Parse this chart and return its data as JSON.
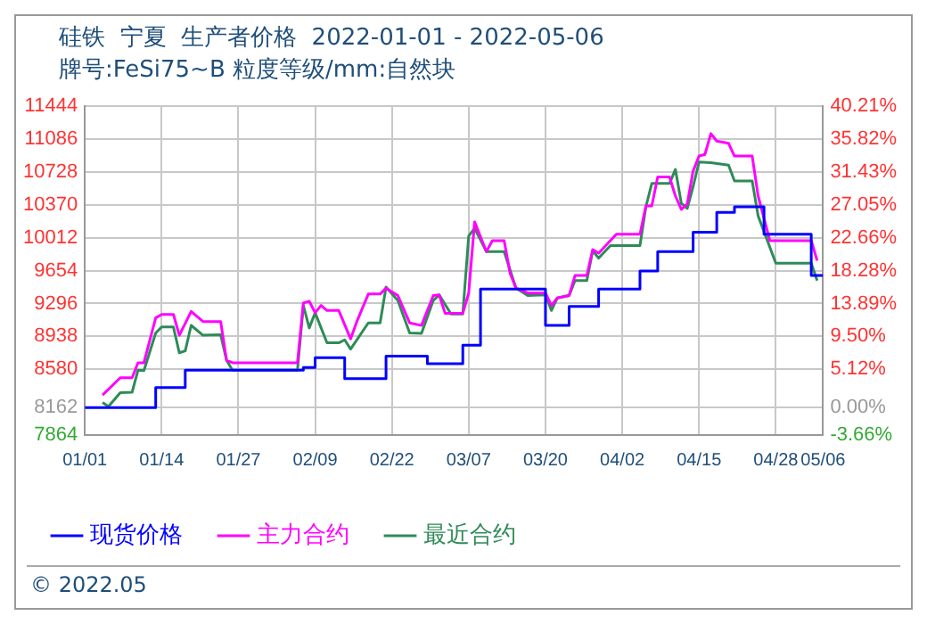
{
  "chart_data": {
    "type": "line",
    "title": "硅铁  宁夏  生产者价格  2022-01-01 - 2022-05-06",
    "subtitle": "牌号:FeSi75~B 粒度等级/mm:自然块",
    "annotations": [
      "© 2022.05"
    ],
    "xlim": [
      "2022-01-01",
      "2022-05-06"
    ],
    "xticks": [
      {
        "value": "2022-01-01",
        "label": "01/01"
      },
      {
        "value": "2022-01-14",
        "label": "01/14"
      },
      {
        "value": "2022-01-27",
        "label": "01/27"
      },
      {
        "value": "2022-02-09",
        "label": "02/09"
      },
      {
        "value": "2022-02-22",
        "label": "02/22"
      },
      {
        "value": "2022-03-07",
        "label": "03/07"
      },
      {
        "value": "2022-03-20",
        "label": "03/20"
      },
      {
        "value": "2022-04-02",
        "label": "04/02"
      },
      {
        "value": "2022-04-15",
        "label": "04/15"
      },
      {
        "value": "2022-04-28",
        "label": "04/28"
      },
      {
        "value": "2022-05-06",
        "label": "05/06"
      }
    ],
    "ylim": [
      7864,
      11444
    ],
    "yticks": [
      7864,
      8162,
      8580,
      8938,
      9296,
      9654,
      10012,
      10370,
      10728,
      11086,
      11444
    ],
    "y2lim": [
      -3.66,
      40.21
    ],
    "y2ticks": [
      {
        "value": -3.66,
        "label": "-3.66%"
      },
      {
        "value": 0,
        "label": "0.00%"
      },
      {
        "value": 5.12,
        "label": "5.12%"
      },
      {
        "value": 9.5,
        "label": "9.50%"
      },
      {
        "value": 13.89,
        "label": "13.89%"
      },
      {
        "value": 18.28,
        "label": "18.28%"
      },
      {
        "value": 22.66,
        "label": "22.66%"
      },
      {
        "value": 27.05,
        "label": "27.05%"
      },
      {
        "value": 31.43,
        "label": "31.43%"
      },
      {
        "value": 35.82,
        "label": "35.82%"
      },
      {
        "value": 40.21,
        "label": "40.21%"
      }
    ],
    "grid": true,
    "legend": "bottom",
    "marker": "none",
    "line_style": "solid",
    "series": [
      {
        "name": "现货价格",
        "type": "step",
        "color": "#0000ff",
        "x": [
          "2022-01-01",
          "2022-01-13",
          "2022-01-18",
          "2022-02-07",
          "2022-02-09",
          "2022-02-14",
          "2022-02-21",
          "2022-02-28",
          "2022-03-06",
          "2022-03-09",
          "2022-03-20",
          "2022-03-24",
          "2022-03-29",
          "2022-04-05",
          "2022-04-08",
          "2022-04-14",
          "2022-04-18",
          "2022-04-21",
          "2022-04-26",
          "2022-05-04",
          "2022-05-06"
        ],
        "values": [
          8162,
          8380,
          8570,
          8600,
          8706,
          8478,
          8722,
          8640,
          8841,
          9454,
          9057,
          9264,
          9454,
          9650,
          9861,
          10072,
          10289,
          10349,
          10050,
          9601,
          9601
        ]
      },
      {
        "name": "主力合约",
        "type": "line",
        "color": "#ff00ff",
        "x": [
          "2022-01-04",
          "2022-01-07",
          "2022-01-09",
          "2022-01-10",
          "2022-01-11",
          "2022-01-13",
          "2022-01-14",
          "2022-01-16",
          "2022-01-17",
          "2022-01-19",
          "2022-01-21",
          "2022-01-24",
          "2022-01-25",
          "2022-01-26",
          "2022-02-06",
          "2022-02-07",
          "2022-02-08",
          "2022-02-09",
          "2022-02-10",
          "2022-02-11",
          "2022-02-13",
          "2022-02-15",
          "2022-02-16",
          "2022-02-18",
          "2022-02-20",
          "2022-02-21",
          "2022-02-23",
          "2022-02-25",
          "2022-02-27",
          "2022-03-01",
          "2022-03-02",
          "2022-03-03",
          "2022-03-06",
          "2022-03-07",
          "2022-03-08",
          "2022-03-10",
          "2022-03-11",
          "2022-03-13",
          "2022-03-14",
          "2022-03-15",
          "2022-03-17",
          "2022-03-20",
          "2022-03-21",
          "2022-03-22",
          "2022-03-24",
          "2022-03-25",
          "2022-03-27",
          "2022-03-28",
          "2022-03-29",
          "2022-04-01",
          "2022-04-05",
          "2022-04-06",
          "2022-04-07",
          "2022-04-08",
          "2022-04-10",
          "2022-04-11",
          "2022-04-12",
          "2022-04-13",
          "2022-04-14",
          "2022-04-15",
          "2022-04-16",
          "2022-04-17",
          "2022-04-18",
          "2022-04-20",
          "2022-04-21",
          "2022-04-24",
          "2022-04-25",
          "2022-04-27",
          "2022-05-04",
          "2022-05-05"
        ],
        "values": [
          8299,
          8488,
          8488,
          8651,
          8651,
          9139,
          9177,
          9177,
          8950,
          9210,
          9100,
          9100,
          8678,
          8651,
          8651,
          9302,
          9320,
          9195,
          9275,
          9220,
          9220,
          8911,
          9090,
          9399,
          9399,
          9464,
          9383,
          9085,
          9057,
          9383,
          9390,
          9190,
          9190,
          9410,
          10185,
          9861,
          9980,
          9980,
          9627,
          9464,
          9410,
          9410,
          9275,
          9356,
          9383,
          9601,
          9601,
          9882,
          9844,
          10050,
          10050,
          10359,
          10359,
          10674,
          10674,
          10468,
          10321,
          10380,
          10739,
          10902,
          10920,
          11146,
          11065,
          11040,
          10902,
          10902,
          10468,
          9980,
          9980,
          9763
        ]
      },
      {
        "name": "最近合约",
        "type": "line",
        "color": "#2e8b57",
        "x": [
          "2022-01-04",
          "2022-01-05",
          "2022-01-07",
          "2022-01-09",
          "2022-01-10",
          "2022-01-11",
          "2022-01-13",
          "2022-01-14",
          "2022-01-16",
          "2022-01-17",
          "2022-01-18",
          "2022-01-19",
          "2022-01-21",
          "2022-01-24",
          "2022-01-25",
          "2022-01-26",
          "2022-02-06",
          "2022-02-07",
          "2022-02-08",
          "2022-02-09",
          "2022-02-11",
          "2022-02-13",
          "2022-02-14",
          "2022-02-15",
          "2022-02-18",
          "2022-02-20",
          "2022-02-21",
          "2022-02-23",
          "2022-02-25",
          "2022-02-27",
          "2022-03-01",
          "2022-03-02",
          "2022-03-04",
          "2022-03-06",
          "2022-03-07",
          "2022-03-08",
          "2022-03-10",
          "2022-03-13",
          "2022-03-15",
          "2022-03-17",
          "2022-03-20",
          "2022-03-21",
          "2022-03-22",
          "2022-03-24",
          "2022-03-25",
          "2022-03-27",
          "2022-03-28",
          "2022-03-29",
          "2022-03-31",
          "2022-04-05",
          "2022-04-06",
          "2022-04-07",
          "2022-04-10",
          "2022-04-11",
          "2022-04-12",
          "2022-04-13",
          "2022-04-14",
          "2022-04-15",
          "2022-04-17",
          "2022-04-20",
          "2022-04-21",
          "2022-04-24",
          "2022-04-25",
          "2022-04-28",
          "2022-05-04",
          "2022-05-05"
        ],
        "values": [
          8218,
          8175,
          8325,
          8330,
          8570,
          8565,
          8976,
          9040,
          9040,
          8759,
          8780,
          9058,
          8950,
          8955,
          8678,
          8570,
          8570,
          9275,
          9030,
          9195,
          8868,
          8868,
          8900,
          8800,
          9085,
          9085,
          9475,
          9330,
          8976,
          8970,
          9329,
          9390,
          9182,
          9182,
          10033,
          10115,
          9861,
          9861,
          9464,
          9383,
          9390,
          9220,
          9356,
          9383,
          9546,
          9546,
          9871,
          9790,
          9926,
          9926,
          10349,
          10603,
          10603,
          10756,
          10386,
          10332,
          10570,
          10837,
          10830,
          10802,
          10630,
          10630,
          10251,
          9736,
          9736,
          9546
        ]
      }
    ]
  }
}
